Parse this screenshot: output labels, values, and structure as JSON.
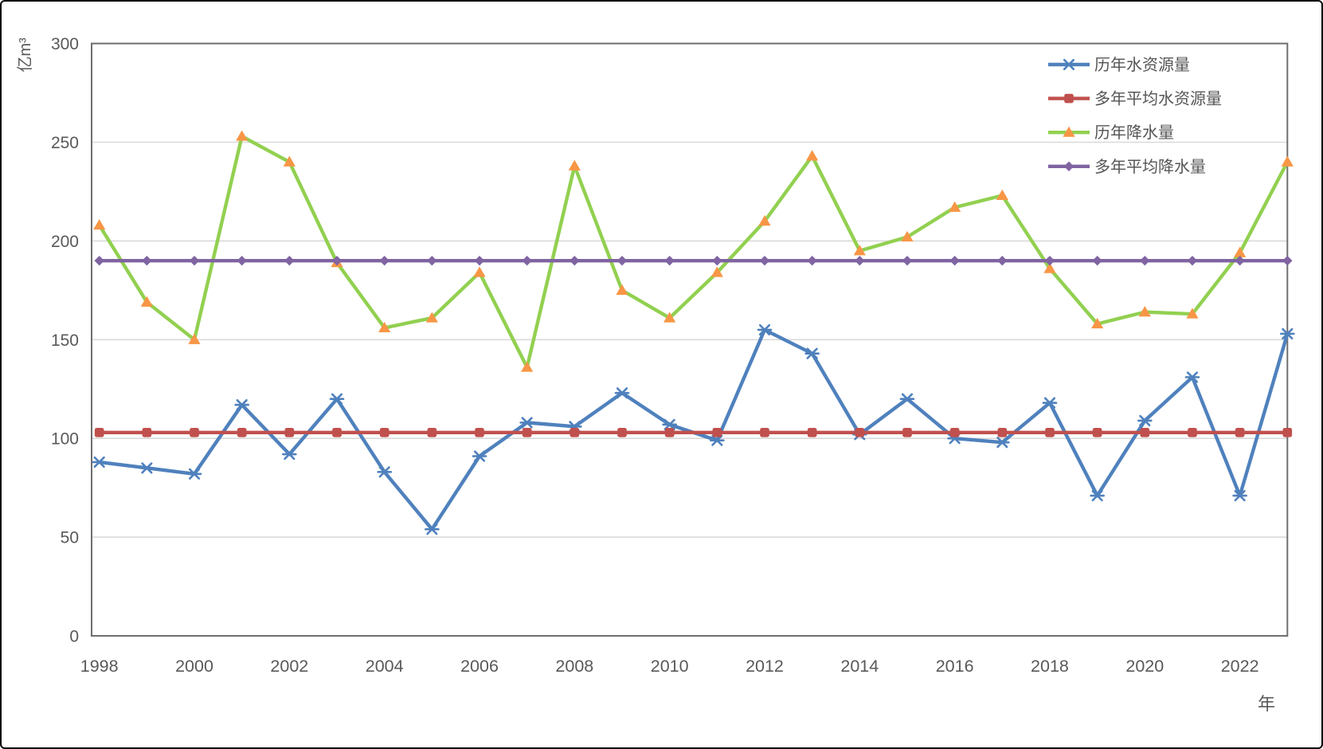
{
  "chart_data": {
    "type": "line",
    "title": "",
    "xlabel": "年",
    "ylabel": "亿m³",
    "ylim": [
      0,
      300
    ],
    "ytick_step": 50,
    "y_ticks": [
      0,
      50,
      100,
      150,
      200,
      250,
      300
    ],
    "grid": true,
    "legend_position": "top-right",
    "x": [
      1998,
      1999,
      2000,
      2001,
      2002,
      2003,
      2004,
      2005,
      2006,
      2007,
      2008,
      2009,
      2010,
      2011,
      2012,
      2013,
      2014,
      2015,
      2016,
      2017,
      2018,
      2019,
      2020,
      2021,
      2022,
      2023
    ],
    "x_tick_labels": [
      "1998",
      "2000",
      "2002",
      "2004",
      "2006",
      "2008",
      "2010",
      "2012",
      "2014",
      "2016",
      "2018",
      "2020",
      "2022"
    ],
    "series": [
      {
        "name": "历年水资源量",
        "color": "#4F81BD",
        "marker": "asterisk",
        "values": [
          88,
          85,
          82,
          117,
          92,
          120,
          83,
          54,
          91,
          108,
          106,
          123,
          107,
          99,
          155,
          143,
          102,
          120,
          100,
          98,
          118,
          71,
          109,
          131,
          71,
          153
        ]
      },
      {
        "name": "多年平均水资源量",
        "color": "#C0504D",
        "marker": "square",
        "constant": 103
      },
      {
        "name": "历年降水量",
        "color": "#92D050",
        "marker": "triangle",
        "marker_fill": "#F79646",
        "values": [
          208,
          169,
          150,
          253,
          240,
          189,
          156,
          161,
          184,
          136,
          238,
          175,
          161,
          184,
          210,
          243,
          195,
          202,
          217,
          223,
          186,
          158,
          164,
          163,
          194,
          240
        ]
      },
      {
        "name": "多年平均降水量",
        "color": "#8064A2",
        "marker": "diamond",
        "constant": 190
      }
    ],
    "style_colors": {
      "gridline": "#D9D9D9",
      "plot_border": "#6E6E6E",
      "tick_text": "#595959",
      "background": "#FFFFFF"
    }
  }
}
